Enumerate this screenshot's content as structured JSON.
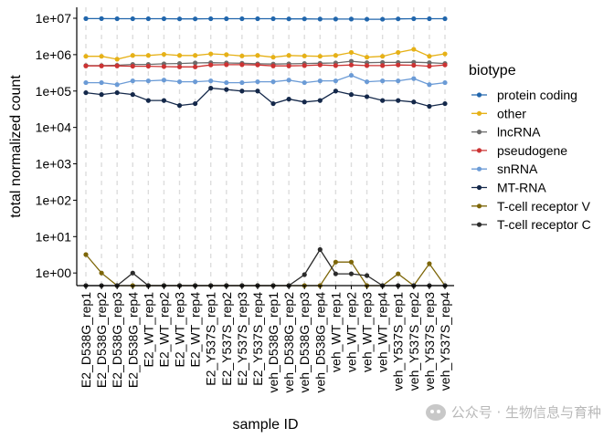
{
  "chart_data": {
    "type": "line",
    "xlabel": "sample ID",
    "ylabel": "total normalized count",
    "yscale": "log10",
    "ylim": [
      0.45,
      20000000
    ],
    "y_ticks": [
      1,
      10,
      100,
      1000,
      10000,
      100000,
      1000000,
      10000000
    ],
    "y_tick_labels": [
      "1e+00",
      "1e+01",
      "1e+02",
      "1e+03",
      "1e+04",
      "1e+05",
      "1e+06",
      "1e+07"
    ],
    "grid": "vertical dashed",
    "legend_title": "biotype",
    "legend_position": "right",
    "categories": [
      "E2_D538G_rep1",
      "E2_D538G_rep2",
      "E2_D538G_rep3",
      "E2_D538G_rep4",
      "E2_WT_rep1",
      "E2_WT_rep2",
      "E2_WT_rep3",
      "E2_WT_rep4",
      "E2_Y537S_rep1",
      "E2_Y537S_rep2",
      "E2_Y537S_rep3",
      "E2_Y537S_rep4",
      "veh_D538G_rep1",
      "veh_D538G_rep2",
      "veh_D538G_rep3",
      "veh_D538G_rep4",
      "veh_WT_rep1",
      "veh_WT_rep2",
      "veh_WT_rep3",
      "veh_WT_rep4",
      "veh_Y537S_rep1",
      "veh_Y537S_rep2",
      "veh_Y537S_rep3",
      "veh_Y537S_rep4"
    ],
    "series": [
      {
        "name": "protein coding",
        "color": "#2166ac",
        "values": [
          9800000,
          9800000,
          9700000,
          9700000,
          9700000,
          9700000,
          9600000,
          9600000,
          9700000,
          9700000,
          9700000,
          9700000,
          9700000,
          9600000,
          9600000,
          9500000,
          9500000,
          9500000,
          9400000,
          9400000,
          9600000,
          9700000,
          9700000,
          9700000
        ]
      },
      {
        "name": "other",
        "color": "#e6b117",
        "values": [
          900000,
          900000,
          750000,
          950000,
          950000,
          1020000,
          950000,
          950000,
          1050000,
          1000000,
          920000,
          950000,
          850000,
          950000,
          920000,
          900000,
          950000,
          1150000,
          850000,
          900000,
          1150000,
          1400000,
          900000,
          1050000
        ]
      },
      {
        "name": "lncRNA",
        "color": "#6b6b6b",
        "values": [
          500000,
          500000,
          510000,
          540000,
          540000,
          560000,
          570000,
          590000,
          600000,
          590000,
          580000,
          560000,
          550000,
          560000,
          570000,
          580000,
          590000,
          660000,
          600000,
          610000,
          610000,
          620000,
          600000,
          570000
        ]
      },
      {
        "name": "pseudogene",
        "color": "#cc3333",
        "values": [
          490000,
          490000,
          490000,
          480000,
          480000,
          470000,
          460000,
          460000,
          520000,
          530000,
          530000,
          520000,
          490000,
          490000,
          500000,
          520000,
          500000,
          520000,
          500000,
          500000,
          520000,
          510000,
          480000,
          520000
        ]
      },
      {
        "name": "snRNA",
        "color": "#6b9bd6",
        "values": [
          170000,
          170000,
          150000,
          190000,
          190000,
          200000,
          180000,
          180000,
          190000,
          170000,
          170000,
          180000,
          180000,
          200000,
          170000,
          190000,
          190000,
          270000,
          180000,
          190000,
          190000,
          220000,
          150000,
          170000
        ]
      },
      {
        "name": "MT-RNA",
        "color": "#14284a",
        "values": [
          90000,
          80000,
          90000,
          80000,
          55000,
          55000,
          40000,
          45000,
          120000,
          110000,
          100000,
          100000,
          45000,
          60000,
          50000,
          55000,
          100000,
          80000,
          70000,
          55000,
          55000,
          50000,
          38000,
          45000
        ]
      },
      {
        "name": "T-cell receptor V",
        "color": "#7d6608",
        "values": [
          3.2,
          1.0,
          0.45,
          0.45,
          0.45,
          0.45,
          0.45,
          0.45,
          0.45,
          0.45,
          0.45,
          0.45,
          0.45,
          0.45,
          0.45,
          0.45,
          2.0,
          2.0,
          0.45,
          0.45,
          0.95,
          0.45,
          1.8,
          0.45
        ]
      },
      {
        "name": "T-cell receptor C",
        "color": "#2b2b2b",
        "values": [
          0.45,
          0.45,
          0.45,
          1.0,
          0.45,
          0.45,
          0.45,
          0.45,
          0.45,
          0.45,
          0.45,
          0.45,
          0.45,
          0.45,
          0.9,
          4.4,
          0.95,
          0.95,
          0.85,
          0.45,
          0.45,
          0.45,
          0.45,
          0.45
        ]
      }
    ]
  },
  "watermark": {
    "text": "公众号 · 生物信息与育种",
    "icon": "wechat-icon"
  }
}
